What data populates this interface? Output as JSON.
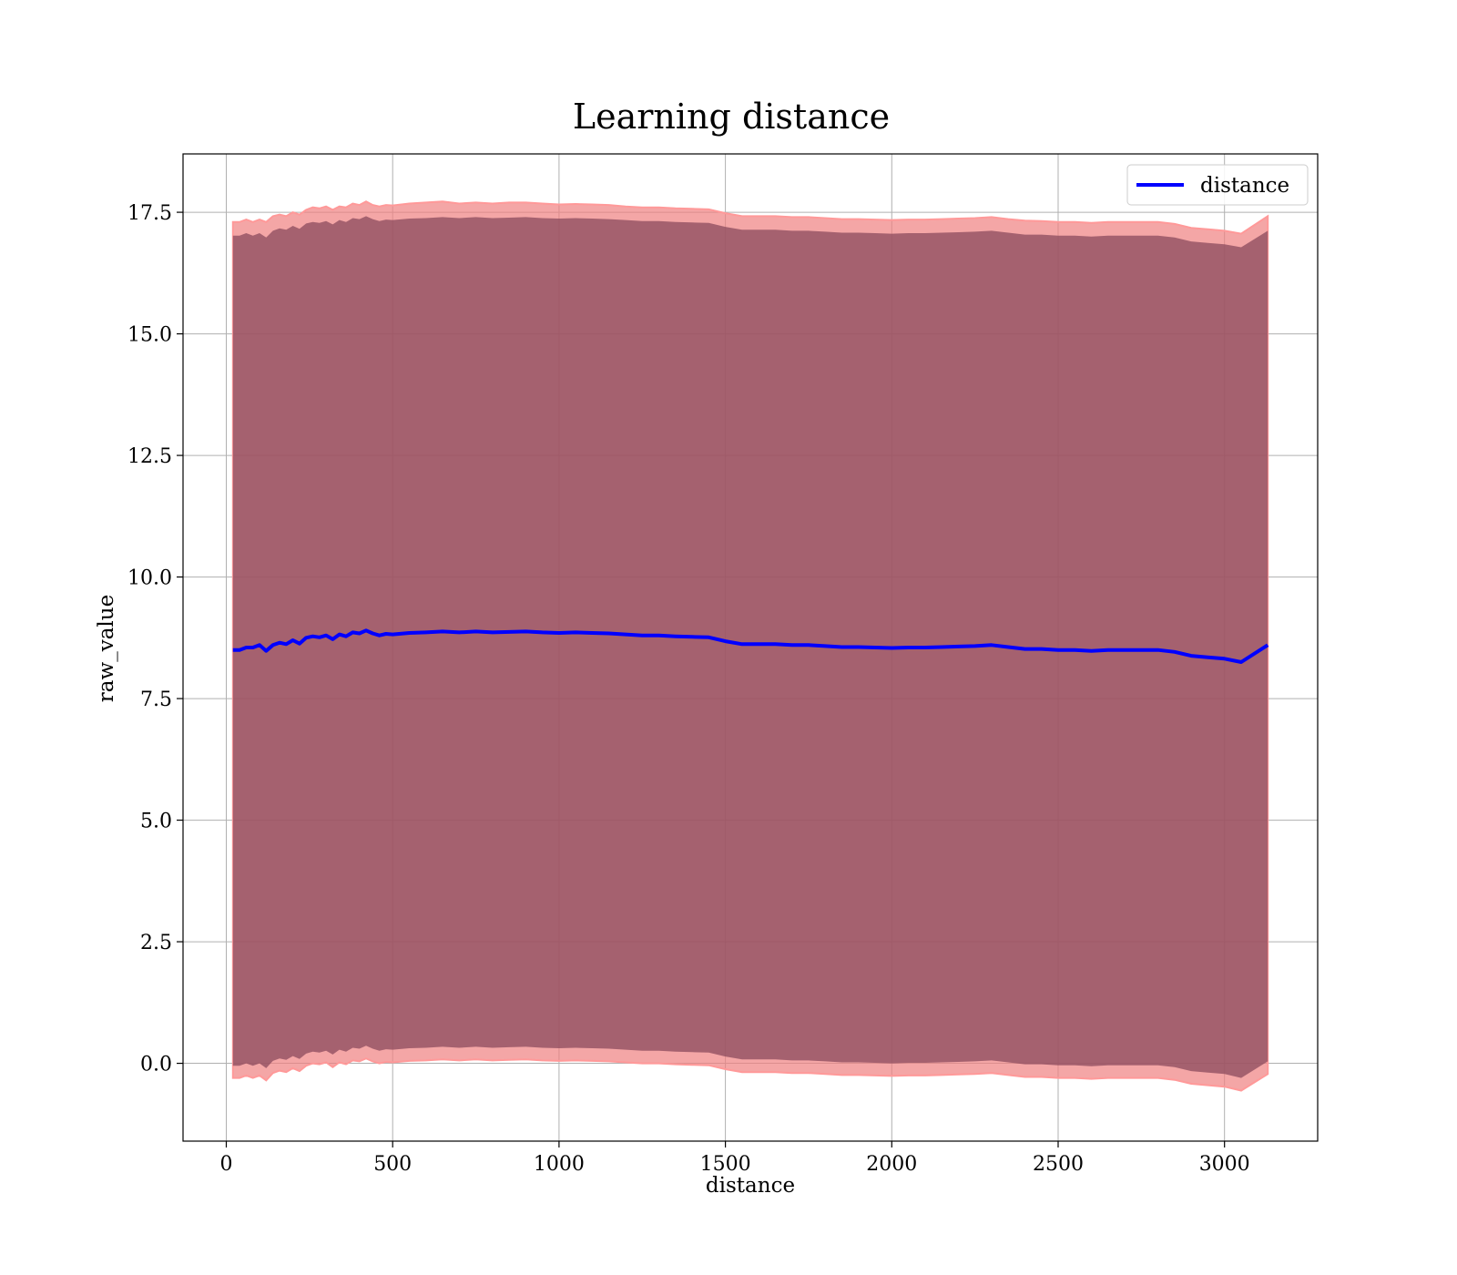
{
  "chart_data": {
    "type": "line",
    "title": "Learning distance",
    "xlabel": "distance",
    "ylabel": "raw_value",
    "xlim": [
      -130,
      3280
    ],
    "ylim": [
      -1.6,
      18.7
    ],
    "xticks": [
      0,
      500,
      1000,
      1500,
      2000,
      2500,
      3000
    ],
    "yticks": [
      0.0,
      2.5,
      5.0,
      7.5,
      10.0,
      12.5,
      15.0,
      17.5
    ],
    "grid": true,
    "legend": {
      "position": "top-right",
      "entries": [
        "distance"
      ]
    },
    "colors": {
      "line": "#0000ff",
      "outer_band": "#f08080",
      "inner_band": "#8b4a5c",
      "outer_band_edge": "#ff9999"
    },
    "series": [
      {
        "name": "distance",
        "x": [
          20,
          40,
          60,
          80,
          100,
          120,
          140,
          160,
          180,
          200,
          220,
          240,
          260,
          280,
          300,
          320,
          340,
          360,
          380,
          400,
          420,
          440,
          460,
          480,
          500,
          550,
          600,
          650,
          700,
          750,
          800,
          850,
          900,
          950,
          1000,
          1050,
          1100,
          1150,
          1200,
          1250,
          1300,
          1350,
          1400,
          1450,
          1500,
          1550,
          1600,
          1650,
          1700,
          1750,
          1800,
          1850,
          1900,
          1950,
          2000,
          2050,
          2100,
          2150,
          2200,
          2250,
          2300,
          2350,
          2400,
          2450,
          2500,
          2550,
          2600,
          2650,
          2700,
          2750,
          2800,
          2850,
          2900,
          2950,
          3000,
          3050,
          3130
        ],
        "y": [
          8.5,
          8.5,
          8.55,
          8.55,
          8.6,
          8.48,
          8.6,
          8.65,
          8.62,
          8.7,
          8.63,
          8.75,
          8.78,
          8.76,
          8.8,
          8.72,
          8.82,
          8.78,
          8.86,
          8.84,
          8.9,
          8.84,
          8.8,
          8.83,
          8.82,
          8.85,
          8.86,
          8.88,
          8.86,
          8.88,
          8.86,
          8.87,
          8.88,
          8.86,
          8.85,
          8.86,
          8.85,
          8.84,
          8.82,
          8.8,
          8.8,
          8.78,
          8.77,
          8.76,
          8.68,
          8.62,
          8.62,
          8.62,
          8.6,
          8.6,
          8.58,
          8.56,
          8.56,
          8.55,
          8.54,
          8.55,
          8.55,
          8.56,
          8.57,
          8.58,
          8.6,
          8.56,
          8.52,
          8.52,
          8.5,
          8.5,
          8.48,
          8.5,
          8.5,
          8.5,
          8.5,
          8.46,
          8.38,
          8.35,
          8.32,
          8.25,
          8.6
        ],
        "outer_band": {
          "upper": [
            17.3,
            17.3,
            17.35,
            17.3,
            17.35,
            17.3,
            17.42,
            17.45,
            17.42,
            17.5,
            17.45,
            17.55,
            17.6,
            17.58,
            17.62,
            17.55,
            17.62,
            17.6,
            17.68,
            17.65,
            17.72,
            17.65,
            17.62,
            17.65,
            17.64,
            17.68,
            17.7,
            17.72,
            17.68,
            17.7,
            17.68,
            17.7,
            17.7,
            17.68,
            17.66,
            17.67,
            17.66,
            17.65,
            17.62,
            17.6,
            17.6,
            17.58,
            17.57,
            17.56,
            17.48,
            17.42,
            17.42,
            17.42,
            17.4,
            17.4,
            17.38,
            17.36,
            17.36,
            17.35,
            17.34,
            17.35,
            17.35,
            17.36,
            17.37,
            17.38,
            17.4,
            17.36,
            17.33,
            17.32,
            17.3,
            17.3,
            17.28,
            17.3,
            17.3,
            17.3,
            17.3,
            17.26,
            17.18,
            17.15,
            17.12,
            17.06,
            17.42
          ],
          "lower": [
            -0.3,
            -0.3,
            -0.25,
            -0.3,
            -0.25,
            -0.35,
            -0.2,
            -0.15,
            -0.18,
            -0.1,
            -0.16,
            -0.05,
            0.0,
            -0.02,
            0.02,
            -0.08,
            0.02,
            -0.02,
            0.06,
            0.04,
            0.1,
            0.04,
            0.0,
            0.03,
            0.02,
            0.05,
            0.06,
            0.08,
            0.06,
            0.08,
            0.06,
            0.07,
            0.08,
            0.06,
            0.05,
            0.06,
            0.05,
            0.04,
            0.02,
            0.0,
            0.0,
            -0.02,
            -0.03,
            -0.04,
            -0.12,
            -0.18,
            -0.18,
            -0.18,
            -0.2,
            -0.2,
            -0.22,
            -0.24,
            -0.24,
            -0.25,
            -0.26,
            -0.25,
            -0.25,
            -0.24,
            -0.23,
            -0.22,
            -0.2,
            -0.24,
            -0.28,
            -0.28,
            -0.3,
            -0.3,
            -0.32,
            -0.3,
            -0.3,
            -0.3,
            -0.3,
            -0.34,
            -0.42,
            -0.45,
            -0.48,
            -0.56,
            -0.22
          ]
        },
        "inner_band": {
          "upper": [
            17.02,
            17.02,
            17.07,
            17.02,
            17.07,
            16.98,
            17.12,
            17.17,
            17.14,
            17.22,
            17.16,
            17.27,
            17.3,
            17.28,
            17.32,
            17.25,
            17.34,
            17.3,
            17.38,
            17.36,
            17.42,
            17.36,
            17.32,
            17.35,
            17.34,
            17.37,
            17.38,
            17.4,
            17.38,
            17.4,
            17.38,
            17.39,
            17.4,
            17.38,
            17.37,
            17.38,
            17.37,
            17.36,
            17.34,
            17.32,
            17.32,
            17.3,
            17.29,
            17.28,
            17.2,
            17.14,
            17.14,
            17.14,
            17.12,
            17.12,
            17.1,
            17.08,
            17.08,
            17.07,
            17.06,
            17.07,
            17.07,
            17.08,
            17.09,
            17.1,
            17.12,
            17.08,
            17.04,
            17.04,
            17.02,
            17.02,
            17.0,
            17.02,
            17.02,
            17.02,
            17.02,
            16.98,
            16.9,
            16.87,
            16.84,
            16.78,
            17.12
          ],
          "lower": [
            -0.05,
            -0.05,
            0.0,
            -0.05,
            0.0,
            -0.1,
            0.05,
            0.1,
            0.07,
            0.15,
            0.09,
            0.2,
            0.24,
            0.22,
            0.26,
            0.18,
            0.28,
            0.24,
            0.32,
            0.3,
            0.36,
            0.3,
            0.26,
            0.29,
            0.28,
            0.31,
            0.32,
            0.34,
            0.32,
            0.34,
            0.32,
            0.33,
            0.34,
            0.32,
            0.31,
            0.32,
            0.31,
            0.3,
            0.28,
            0.26,
            0.26,
            0.24,
            0.23,
            0.22,
            0.14,
            0.08,
            0.08,
            0.08,
            0.06,
            0.06,
            0.04,
            0.02,
            0.02,
            0.01,
            0.0,
            0.01,
            0.01,
            0.02,
            0.03,
            0.04,
            0.06,
            0.02,
            -0.02,
            -0.02,
            -0.04,
            -0.04,
            -0.06,
            -0.04,
            -0.04,
            -0.04,
            -0.04,
            -0.08,
            -0.16,
            -0.19,
            -0.22,
            -0.3,
            0.04
          ]
        }
      }
    ]
  }
}
